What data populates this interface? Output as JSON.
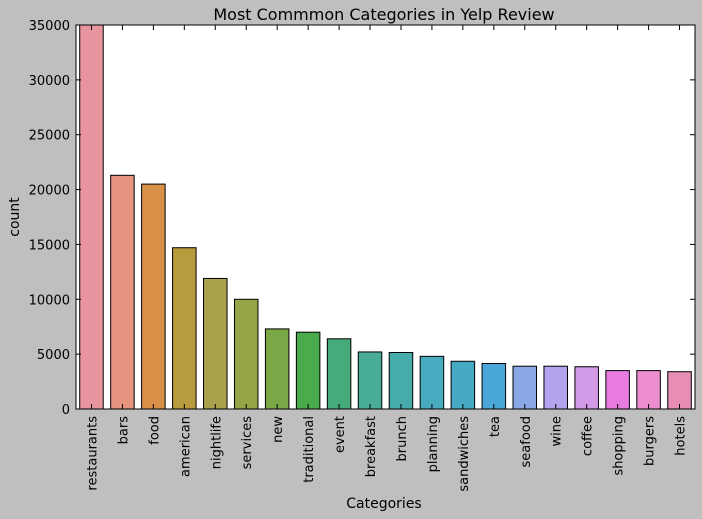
{
  "chart_data": {
    "type": "bar",
    "title": "Most Commmon Categories in Yelp Review",
    "xlabel": "Categories",
    "ylabel": "count",
    "ylim": [
      0,
      35000
    ],
    "yticks": [
      0,
      5000,
      10000,
      15000,
      20000,
      25000,
      30000,
      35000
    ],
    "grid": false,
    "categories": [
      "restaurants",
      "bars",
      "food",
      "american",
      "nightlife",
      "services",
      "new",
      "traditional",
      "event",
      "breakfast",
      "brunch",
      "planning",
      "sandwiches",
      "tea",
      "seafood",
      "wine",
      "coffee",
      "shopping",
      "burgers",
      "hotels"
    ],
    "values": [
      35000,
      21300,
      20500,
      14700,
      11900,
      10000,
      7300,
      7000,
      6400,
      5200,
      5150,
      4800,
      4350,
      4150,
      3900,
      3900,
      3850,
      3500,
      3500,
      3400
    ],
    "colors": [
      "#e8949f",
      "#e59480",
      "#d9914a",
      "#b79b3c",
      "#a9a14c",
      "#96a646",
      "#7ba847",
      "#4aab4c",
      "#46ab7b",
      "#48ac96",
      "#47aaab",
      "#48abc0",
      "#46a9c2",
      "#4aa6d9",
      "#8aa8e6",
      "#b3a3ee",
      "#d39ae8",
      "#e77be0",
      "#ec8dce",
      "#e88db6"
    ]
  }
}
